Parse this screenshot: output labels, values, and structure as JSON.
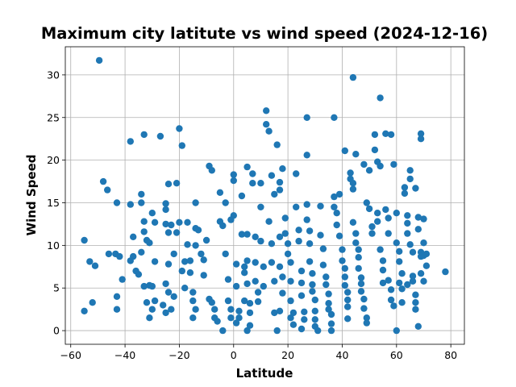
{
  "chart_data": {
    "type": "scatter",
    "title": "Maximum city latitute vs wind speed (2024-12-16)",
    "xlabel": "Latitude",
    "ylabel": "Wind Speed",
    "xlim": [
      -62,
      85
    ],
    "ylim": [
      -1.6,
      33.3
    ],
    "xticks": [
      -60,
      -40,
      -20,
      0,
      20,
      40,
      60,
      80
    ],
    "yticks": [
      0,
      5,
      10,
      15,
      20,
      25,
      30
    ],
    "grid": true,
    "marker_color": "#1f77b4",
    "points": [
      [
        -55,
        10.6
      ],
      [
        -53,
        8.1
      ],
      [
        -51,
        7.6
      ],
      [
        -49.5,
        31.7
      ],
      [
        -48,
        17.5
      ],
      [
        -46.5,
        16.5
      ],
      [
        -46,
        9
      ],
      [
        -43.5,
        9
      ],
      [
        -42,
        8.7
      ],
      [
        -41,
        6
      ],
      [
        -55,
        2.3
      ],
      [
        -52,
        3.3
      ],
      [
        -43,
        4
      ],
      [
        -43,
        2.5
      ],
      [
        -43,
        15
      ],
      [
        -38,
        22.2
      ],
      [
        -38,
        14.8
      ],
      [
        -37,
        8.7
      ],
      [
        -37,
        11
      ],
      [
        -38,
        8.2
      ],
      [
        -36,
        7
      ],
      [
        -35,
        6.6
      ],
      [
        -34,
        9.2
      ],
      [
        -33,
        12.8
      ],
      [
        -34,
        16
      ],
      [
        -34,
        15
      ],
      [
        -33,
        23
      ],
      [
        -33,
        11.6
      ],
      [
        -32,
        10.6
      ],
      [
        -31,
        10.3
      ],
      [
        -30,
        13.8
      ],
      [
        -31,
        5.3
      ],
      [
        -33,
        5.2
      ],
      [
        -30,
        5.2
      ],
      [
        -29,
        12.7
      ],
      [
        -29,
        8.1
      ],
      [
        -32,
        3.3
      ],
      [
        -31,
        1.5
      ],
      [
        -30,
        2.5
      ],
      [
        -29,
        3.5
      ],
      [
        -27,
        22.8
      ],
      [
        -25,
        14.9
      ],
      [
        -25,
        14.2
      ],
      [
        -24,
        17.2
      ],
      [
        -25,
        12.5
      ],
      [
        -24,
        11.5
      ],
      [
        -23,
        12.4
      ],
      [
        -22,
        9
      ],
      [
        -24,
        7.8
      ],
      [
        -25,
        5.5
      ],
      [
        -24,
        4.5
      ],
      [
        -26,
        3
      ],
      [
        -25,
        2.1
      ],
      [
        -23,
        2.5
      ],
      [
        -22,
        4
      ],
      [
        -21,
        11.5
      ],
      [
        -21,
        17.3
      ],
      [
        -20,
        23.7
      ],
      [
        -19,
        21.7
      ],
      [
        -20,
        12.7
      ],
      [
        -19,
        7
      ],
      [
        -18,
        8.1
      ],
      [
        -18,
        5
      ],
      [
        -17,
        12.7
      ],
      [
        -17,
        10.1
      ],
      [
        -16,
        8.2
      ],
      [
        -16,
        6.8
      ],
      [
        -15,
        4.5
      ],
      [
        -15,
        3.5
      ],
      [
        -14,
        2.5
      ],
      [
        -15,
        1.5
      ],
      [
        -14,
        10
      ],
      [
        -14,
        12
      ],
      [
        -13,
        11.8
      ],
      [
        -14,
        15
      ],
      [
        -12,
        9
      ],
      [
        -11,
        8.3
      ],
      [
        -11,
        6.5
      ],
      [
        -10,
        10.6
      ],
      [
        -9,
        19.3
      ],
      [
        -8,
        18.8
      ],
      [
        -9,
        3.7
      ],
      [
        -8,
        3.3
      ],
      [
        -7,
        2.5
      ],
      [
        -7,
        1.5
      ],
      [
        -6,
        1.1
      ],
      [
        -5,
        16.2
      ],
      [
        -5,
        12.8
      ],
      [
        -4,
        12.3
      ],
      [
        -4,
        0
      ],
      [
        -3,
        15
      ],
      [
        -3,
        9
      ],
      [
        -2,
        6
      ],
      [
        -2,
        3.5
      ],
      [
        -1,
        2.5
      ],
      [
        -1,
        1.5
      ],
      [
        0,
        18.3
      ],
      [
        0,
        17.6
      ],
      [
        0,
        13.5
      ],
      [
        -1,
        13
      ],
      [
        1,
        7.8
      ],
      [
        1,
        5.2
      ],
      [
        2,
        2.3
      ],
      [
        2,
        1.5
      ],
      [
        1,
        0.9
      ],
      [
        3,
        15.8
      ],
      [
        3,
        11.3
      ],
      [
        4,
        7.5
      ],
      [
        4,
        6.8
      ],
      [
        4,
        3.5
      ],
      [
        5,
        19.2
      ],
      [
        5,
        11.3
      ],
      [
        5,
        8.2
      ],
      [
        5,
        5.5
      ],
      [
        6,
        3.2
      ],
      [
        6,
        2.1
      ],
      [
        6,
        0.6
      ],
      [
        5,
        0
      ],
      [
        7,
        18.4
      ],
      [
        7,
        17.3
      ],
      [
        8,
        11
      ],
      [
        8,
        8
      ],
      [
        8,
        5.8
      ],
      [
        9,
        4.5
      ],
      [
        9,
        3.4
      ],
      [
        10,
        17.3
      ],
      [
        10,
        14.5
      ],
      [
        10,
        10.5
      ],
      [
        11,
        7.5
      ],
      [
        11,
        5.2
      ],
      [
        12,
        25.8
      ],
      [
        12,
        24.2
      ],
      [
        13,
        23.4
      ],
      [
        13,
        12.8
      ],
      [
        14,
        10.2
      ],
      [
        14,
        18.2
      ],
      [
        15,
        16
      ],
      [
        14,
        8
      ],
      [
        15,
        5.8
      ],
      [
        15,
        2.1
      ],
      [
        16,
        21.8
      ],
      [
        17,
        17.4
      ],
      [
        17,
        16.5
      ],
      [
        17,
        11
      ],
      [
        18,
        19
      ],
      [
        17,
        7.5
      ],
      [
        18,
        6.3
      ],
      [
        18,
        4.4
      ],
      [
        17,
        2.3
      ],
      [
        16,
        0
      ],
      [
        19,
        13.2
      ],
      [
        19,
        11.4
      ],
      [
        20,
        10.2
      ],
      [
        20,
        9
      ],
      [
        21,
        8
      ],
      [
        21,
        5.8
      ],
      [
        21,
        3.5
      ],
      [
        22,
        2.1
      ],
      [
        21,
        1.5
      ],
      [
        22,
        0.7
      ],
      [
        23,
        18.4
      ],
      [
        23,
        14.5
      ],
      [
        24,
        11.8
      ],
      [
        24,
        10.5
      ],
      [
        25,
        7
      ],
      [
        25,
        5.6
      ],
      [
        25,
        4.1
      ],
      [
        26,
        2.2
      ],
      [
        26,
        1.3
      ],
      [
        25,
        0.2
      ],
      [
        27,
        25
      ],
      [
        27,
        20.6
      ],
      [
        27,
        14.8
      ],
      [
        27,
        13
      ],
      [
        28,
        11.7
      ],
      [
        28,
        10.2
      ],
      [
        28,
        8.1
      ],
      [
        29,
        6.7
      ],
      [
        29,
        5.4
      ],
      [
        29,
        4.6
      ],
      [
        30,
        3.6
      ],
      [
        30,
        2.3
      ],
      [
        30,
        1.3
      ],
      [
        30,
        0.5
      ],
      [
        31,
        0
      ],
      [
        32,
        14.6
      ],
      [
        32,
        11.2
      ],
      [
        33,
        9.6
      ],
      [
        33,
        7.7
      ],
      [
        34,
        6.3
      ],
      [
        34,
        5.4
      ],
      [
        35,
        4.3
      ],
      [
        35,
        3.2
      ],
      [
        35,
        2.5
      ],
      [
        36,
        1.9
      ],
      [
        36,
        0.8
      ],
      [
        36,
        0
      ],
      [
        37,
        15.7
      ],
      [
        37,
        14.5
      ],
      [
        38,
        13.8
      ],
      [
        38,
        12.4
      ],
      [
        37,
        25
      ],
      [
        39,
        16
      ],
      [
        39,
        11.1
      ],
      [
        40,
        9.5
      ],
      [
        40,
        8.2
      ],
      [
        41,
        7.3
      ],
      [
        41,
        6.3
      ],
      [
        41,
        5.3
      ],
      [
        42,
        4.5
      ],
      [
        42,
        3.6
      ],
      [
        42,
        2.8
      ],
      [
        42,
        1.4
      ],
      [
        41,
        21.1
      ],
      [
        43,
        18.5
      ],
      [
        43,
        17.8
      ],
      [
        44,
        17.3
      ],
      [
        44,
        16.6
      ],
      [
        44,
        29.7
      ],
      [
        44,
        12.7
      ],
      [
        45,
        20.7
      ],
      [
        45,
        11.4
      ],
      [
        45,
        10.3
      ],
      [
        46,
        9.5
      ],
      [
        46,
        8.6
      ],
      [
        46,
        7.3
      ],
      [
        47,
        6.2
      ],
      [
        47,
        5.5
      ],
      [
        47,
        4.6
      ],
      [
        48,
        3.7
      ],
      [
        48,
        2.6
      ],
      [
        49,
        1.5
      ],
      [
        49,
        0.9
      ],
      [
        48,
        19.5
      ],
      [
        49,
        15
      ],
      [
        50,
        18.8
      ],
      [
        50,
        14.3
      ],
      [
        51,
        12.2
      ],
      [
        51,
        11.4
      ],
      [
        52,
        23
      ],
      [
        52,
        21.2
      ],
      [
        53,
        19.8
      ],
      [
        53,
        13.8
      ],
      [
        53,
        12.8
      ],
      [
        54,
        27.3
      ],
      [
        54,
        19.3
      ],
      [
        54,
        9.5
      ],
      [
        55,
        8.2
      ],
      [
        55,
        7.1
      ],
      [
        55,
        5.6
      ],
      [
        56,
        23.1
      ],
      [
        56,
        14.2
      ],
      [
        57,
        13.2
      ],
      [
        57,
        11.4
      ],
      [
        57,
        5.9
      ],
      [
        58,
        23
      ],
      [
        58,
        4.8
      ],
      [
        58,
        3.6
      ],
      [
        59,
        2.9
      ],
      [
        59,
        19.5
      ],
      [
        60,
        13.8
      ],
      [
        60,
        10.3
      ],
      [
        61,
        9.3
      ],
      [
        61,
        8.1
      ],
      [
        61,
        5.6
      ],
      [
        62,
        4.9
      ],
      [
        62,
        3.3
      ],
      [
        60,
        0
      ],
      [
        63,
        16.8
      ],
      [
        63,
        16.1
      ],
      [
        64,
        13.5
      ],
      [
        64,
        12.6
      ],
      [
        64,
        11.4
      ],
      [
        65,
        18.8
      ],
      [
        65,
        17.8
      ],
      [
        65,
        10.1
      ],
      [
        66,
        9.2
      ],
      [
        66,
        6.4
      ],
      [
        66,
        5.8
      ],
      [
        67,
        4.2
      ],
      [
        67,
        3.3
      ],
      [
        67,
        2.5
      ],
      [
        67,
        16.7
      ],
      [
        68,
        13.3
      ],
      [
        68,
        11.9
      ],
      [
        68,
        0.5
      ],
      [
        69,
        9.2
      ],
      [
        69,
        8.7
      ],
      [
        69,
        6.7
      ],
      [
        69,
        23.1
      ],
      [
        69,
        22.5
      ],
      [
        70,
        13.1
      ],
      [
        70,
        10.3
      ],
      [
        70,
        8.8
      ],
      [
        70,
        5.8
      ],
      [
        71,
        9
      ],
      [
        71,
        7.6
      ],
      [
        78,
        6.9
      ],
      [
        62,
        6.7
      ],
      [
        64,
        5.4
      ]
    ]
  }
}
